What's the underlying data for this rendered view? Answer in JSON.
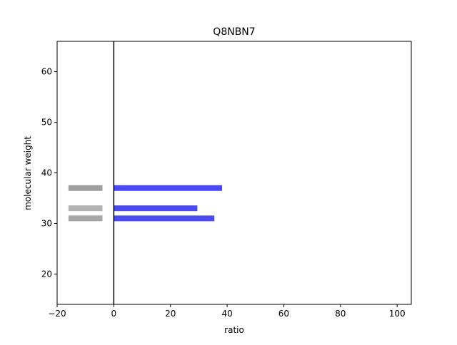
{
  "chart_data": {
    "type": "bar",
    "orientation": "horizontal",
    "title": "Q8NBN7",
    "xlabel": "ratio",
    "ylabel": "molecular weight",
    "xlim": [
      -20,
      105
    ],
    "ylim": [
      14,
      66
    ],
    "xticks": [
      -20,
      0,
      20,
      40,
      60,
      80,
      100
    ],
    "yticks": [
      20,
      30,
      40,
      50,
      60
    ],
    "grid": false,
    "legend": "none",
    "reference_line_x": 0,
    "series": [
      {
        "color": "#4a4af0",
        "bars": [
          {
            "y": 37,
            "x_start": 0,
            "x_end": 38.2
          },
          {
            "y": 33,
            "x_start": 0,
            "x_end": 29.5
          },
          {
            "y": 31,
            "x_start": 0,
            "x_end": 35.5
          }
        ]
      },
      {
        "color": "#a0a0a0",
        "bars": [
          {
            "y": 37,
            "x_start": -16,
            "x_end": -4,
            "color": "#a0a0a0"
          },
          {
            "y": 33,
            "x_start": -16,
            "x_end": -4,
            "color": "#b3b3b3"
          },
          {
            "y": 31,
            "x_start": -16,
            "x_end": -4,
            "color": "#a6a6a6"
          }
        ]
      }
    ]
  }
}
